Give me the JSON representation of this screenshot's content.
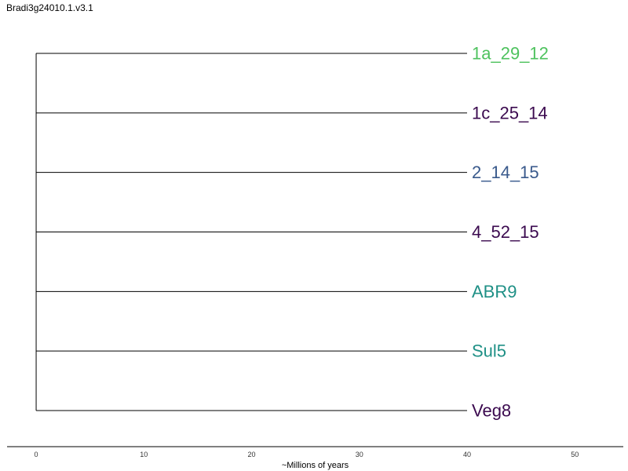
{
  "title": "Bradi3g24010.1.v3.1",
  "axis": {
    "label": "~Millions of years",
    "ticks": [
      0,
      10,
      20,
      30,
      40,
      50
    ],
    "range": [
      -2.7,
      54.5
    ]
  },
  "tree": {
    "branch_end": 40,
    "tips": [
      {
        "label": "1a_29_12",
        "color": "#4ec25e"
      },
      {
        "label": "1c_25_14",
        "color": "#3b0a4f"
      },
      {
        "label": "2_14_15",
        "color": "#3a5a8c"
      },
      {
        "label": "4_52_15",
        "color": "#3b0a4f"
      },
      {
        "label": "ABR9",
        "color": "#1f9086"
      },
      {
        "label": "Sul5",
        "color": "#1f9086"
      },
      {
        "label": "Veg8",
        "color": "#3b0a4f"
      }
    ]
  }
}
